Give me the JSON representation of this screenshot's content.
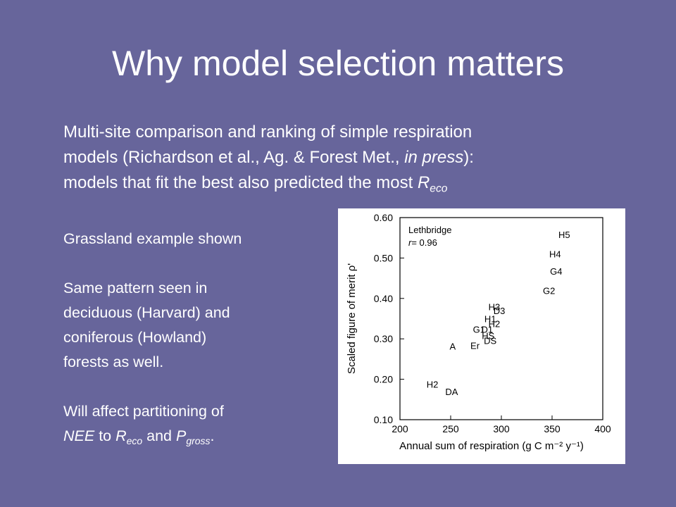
{
  "slide": {
    "title": "Why model selection matters",
    "intro": {
      "line1": "Multi-site comparison and ranking of simple respiration",
      "line2_a": "models (Richardson et al., Ag. & Forest Met., ",
      "line2_em": "in press",
      "line2_b": "):",
      "line3_a": "models that fit the best also predicted the most ",
      "line3_R": "R",
      "line3_sub": "eco"
    },
    "left": {
      "grassland": "Grassland example shown",
      "pattern1": "Same pattern seen in",
      "pattern2": "deciduous (Harvard) and",
      "pattern3": "coniferous (Howland)",
      "pattern4": "forests as well.",
      "affect1": "Will affect partitioning of",
      "nee": "NEE",
      "to": " to ",
      "R": "R",
      "eco": "eco",
      "and": " and ",
      "P": "P",
      "gross": "gross",
      "period": "."
    }
  },
  "chart_data": {
    "type": "scatter",
    "site": "Lethbridge",
    "r_label": "r",
    "r_value": "= 0.96",
    "ylabel": "Scaled figure of merit ρ'",
    "xlabel": "Annual sum of respiration (g C m⁻² y⁻¹)",
    "xlim": [
      200,
      400
    ],
    "ylim": [
      0.1,
      0.6
    ],
    "x_ticks": [
      200,
      250,
      300,
      350,
      400
    ],
    "y_ticks": [
      "0.10",
      "0.20",
      "0.30",
      "0.40",
      "0.50",
      "0.60"
    ],
    "points": [
      {
        "label": "H5",
        "x": 362,
        "y": 0.558
      },
      {
        "label": "H4",
        "x": 353,
        "y": 0.51
      },
      {
        "label": "G4",
        "x": 354,
        "y": 0.468
      },
      {
        "label": "G2",
        "x": 347,
        "y": 0.42
      },
      {
        "label": "H3",
        "x": 293,
        "y": 0.38
      },
      {
        "label": "D3",
        "x": 298,
        "y": 0.37
      },
      {
        "label": "H1",
        "x": 289,
        "y": 0.35
      },
      {
        "label": "H2",
        "x": 293,
        "y": 0.338
      },
      {
        "label": "G1",
        "x": 278,
        "y": 0.324
      },
      {
        "label": "D1",
        "x": 286,
        "y": 0.324
      },
      {
        "label": "HS",
        "x": 287,
        "y": 0.308
      },
      {
        "label": "DS",
        "x": 289,
        "y": 0.296
      },
      {
        "label": "A",
        "x": 252,
        "y": 0.282
      },
      {
        "label": "Er",
        "x": 274,
        "y": 0.284
      },
      {
        "label": "H2",
        "x": 232,
        "y": 0.188
      },
      {
        "label": "DA",
        "x": 251,
        "y": 0.17
      }
    ]
  }
}
